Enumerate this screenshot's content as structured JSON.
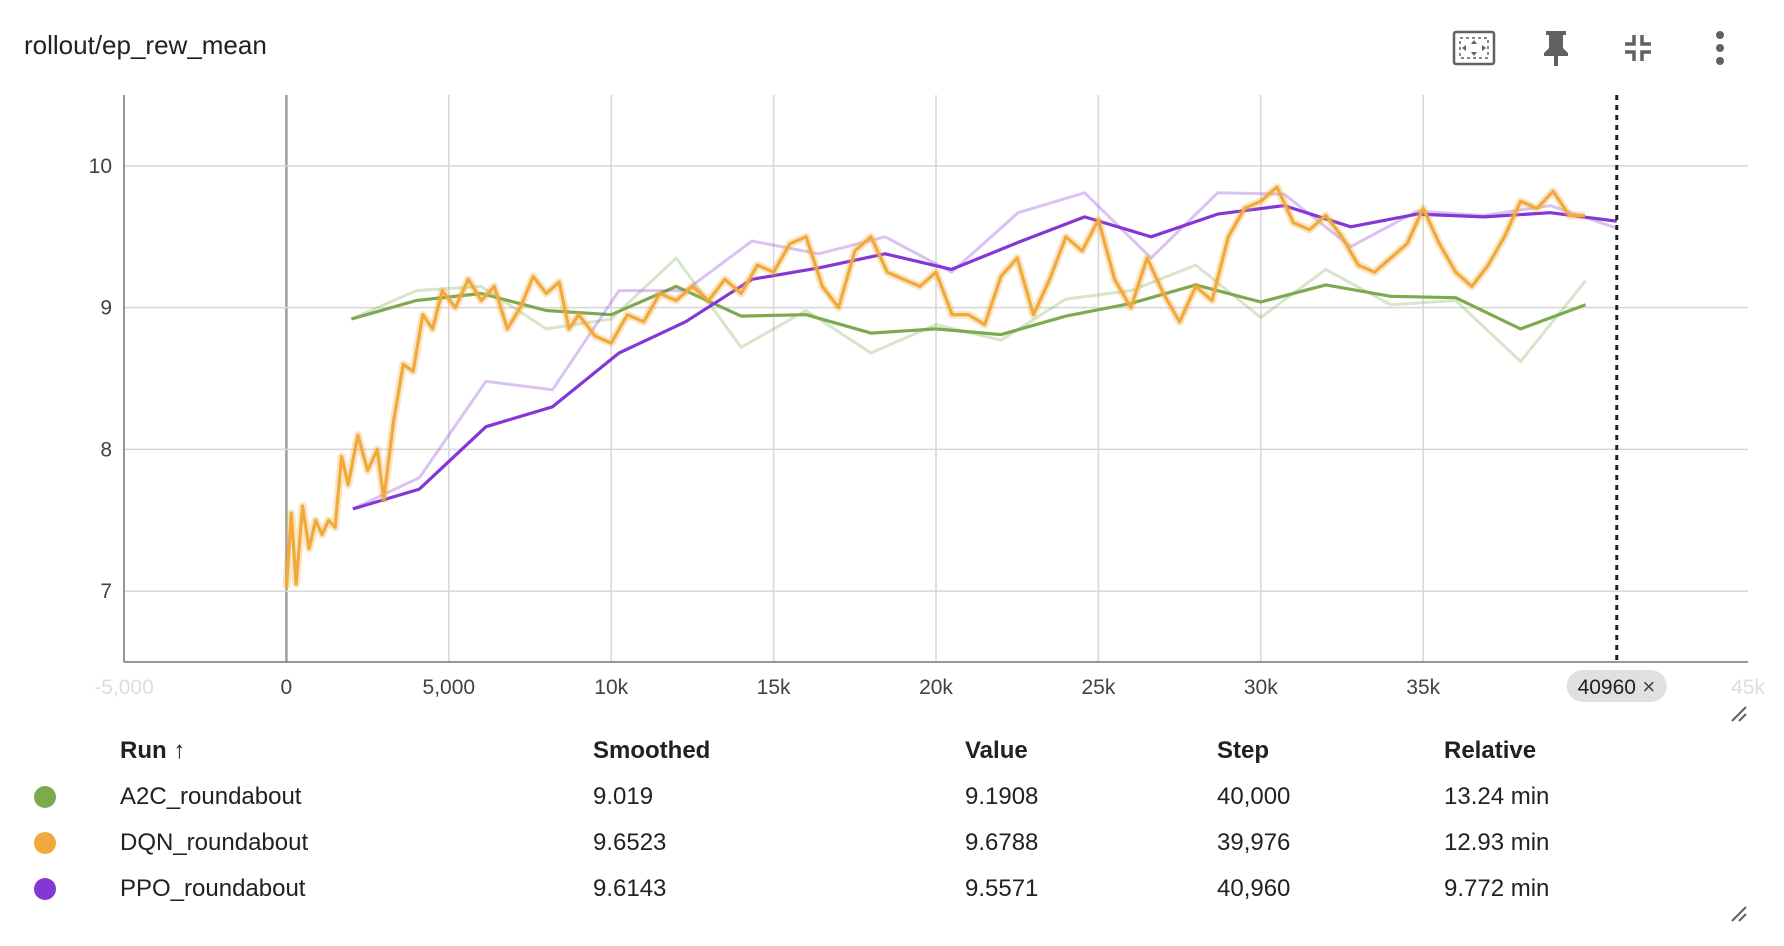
{
  "card": {
    "title": "rollout/ep_rew_mean",
    "tools": [
      {
        "name": "fit-domain-icon"
      },
      {
        "name": "pin-icon"
      },
      {
        "name": "collapse-icon"
      },
      {
        "name": "more-vert-icon"
      }
    ]
  },
  "table": {
    "headers": {
      "run": "Run ↑",
      "smoothed": "Smoothed",
      "value": "Value",
      "step": "Step",
      "relative": "Relative"
    },
    "rows": [
      {
        "color": "#7cab4f",
        "run": "A2C_roundabout",
        "smoothed": "9.019",
        "value": "9.1908",
        "step": "40,000",
        "relative": "13.24 min"
      },
      {
        "color": "#f0a93a",
        "run": "DQN_roundabout",
        "smoothed": "9.6523",
        "value": "9.6788",
        "step": "39,976",
        "relative": "12.93 min"
      },
      {
        "color": "#8436d6",
        "run": "PPO_roundabout",
        "smoothed": "9.6143",
        "value": "9.5571",
        "step": "40,960",
        "relative": "9.772 min"
      }
    ]
  },
  "chart_data": {
    "type": "line",
    "title": "rollout/ep_rew_mean",
    "xlim": [
      -5000,
      45000
    ],
    "ylim": [
      6.5,
      10.5
    ],
    "x_ticks": [
      {
        "v": -5000,
        "label": "-5,000",
        "faded": true
      },
      {
        "v": 0,
        "label": "0"
      },
      {
        "v": 5000,
        "label": "5,000"
      },
      {
        "v": 10000,
        "label": "10k"
      },
      {
        "v": 15000,
        "label": "15k"
      },
      {
        "v": 20000,
        "label": "20k"
      },
      {
        "v": 25000,
        "label": "25k"
      },
      {
        "v": 30000,
        "label": "30k"
      },
      {
        "v": 35000,
        "label": "35k"
      },
      {
        "v": 45000,
        "label": "45k",
        "faded": true
      }
    ],
    "y_ticks": [
      7,
      8,
      9,
      10
    ],
    "grid": true,
    "cursor_step": 40960,
    "cursor_label": "40960",
    "series": [
      {
        "name": "A2C_roundabout",
        "color": "#7cab4f",
        "raw": [
          [
            2000,
            8.92
          ],
          [
            4000,
            9.12
          ],
          [
            6000,
            9.15
          ],
          [
            8000,
            8.85
          ],
          [
            10000,
            8.92
          ],
          [
            12000,
            9.35
          ],
          [
            14000,
            8.72
          ],
          [
            16000,
            8.98
          ],
          [
            18000,
            8.68
          ],
          [
            20000,
            8.88
          ],
          [
            22000,
            8.77
          ],
          [
            24000,
            9.06
          ],
          [
            26000,
            9.12
          ],
          [
            28000,
            9.3
          ],
          [
            30000,
            8.93
          ],
          [
            32000,
            9.27
          ],
          [
            34000,
            9.02
          ],
          [
            36000,
            9.05
          ],
          [
            38000,
            8.62
          ],
          [
            40000,
            9.19
          ]
        ],
        "smoothed": [
          [
            2000,
            8.92
          ],
          [
            4000,
            9.05
          ],
          [
            6000,
            9.1
          ],
          [
            8000,
            8.98
          ],
          [
            10000,
            8.95
          ],
          [
            12000,
            9.15
          ],
          [
            14000,
            8.94
          ],
          [
            16000,
            8.95
          ],
          [
            18000,
            8.82
          ],
          [
            20000,
            8.85
          ],
          [
            22000,
            8.81
          ],
          [
            24000,
            8.94
          ],
          [
            26000,
            9.03
          ],
          [
            28000,
            9.16
          ],
          [
            30000,
            9.04
          ],
          [
            32000,
            9.16
          ],
          [
            34000,
            9.08
          ],
          [
            36000,
            9.07
          ],
          [
            38000,
            8.85
          ],
          [
            40000,
            9.02
          ]
        ]
      },
      {
        "name": "PPO_roundabout",
        "color": "#8436d6",
        "raw": [
          [
            2048,
            7.58
          ],
          [
            4096,
            7.8
          ],
          [
            6144,
            8.48
          ],
          [
            8192,
            8.42
          ],
          [
            10240,
            9.12
          ],
          [
            12288,
            9.12
          ],
          [
            14336,
            9.47
          ],
          [
            16384,
            9.38
          ],
          [
            18432,
            9.5
          ],
          [
            20480,
            9.25
          ],
          [
            22528,
            9.67
          ],
          [
            24576,
            9.81
          ],
          [
            26624,
            9.35
          ],
          [
            28672,
            9.81
          ],
          [
            30720,
            9.8
          ],
          [
            32768,
            9.43
          ],
          [
            34816,
            9.68
          ],
          [
            36864,
            9.65
          ],
          [
            38912,
            9.72
          ],
          [
            40960,
            9.56
          ]
        ],
        "smoothed": [
          [
            2048,
            7.58
          ],
          [
            4096,
            7.72
          ],
          [
            6144,
            8.16
          ],
          [
            8192,
            8.3
          ],
          [
            10240,
            8.68
          ],
          [
            12288,
            8.9
          ],
          [
            14336,
            9.2
          ],
          [
            16384,
            9.28
          ],
          [
            18432,
            9.38
          ],
          [
            20480,
            9.27
          ],
          [
            22528,
            9.46
          ],
          [
            24576,
            9.64
          ],
          [
            26624,
            9.5
          ],
          [
            28672,
            9.66
          ],
          [
            30720,
            9.72
          ],
          [
            32768,
            9.57
          ],
          [
            34816,
            9.66
          ],
          [
            36864,
            9.64
          ],
          [
            38912,
            9.67
          ],
          [
            40960,
            9.61
          ]
        ]
      },
      {
        "name": "DQN_roundabout",
        "color": "#f0a93a",
        "smoothed": [
          [
            0,
            7.02
          ],
          [
            150,
            7.55
          ],
          [
            300,
            7.05
          ],
          [
            500,
            7.6
          ],
          [
            700,
            7.3
          ],
          [
            900,
            7.5
          ],
          [
            1100,
            7.4
          ],
          [
            1300,
            7.5
          ],
          [
            1500,
            7.45
          ],
          [
            1700,
            7.95
          ],
          [
            1900,
            7.75
          ],
          [
            2200,
            8.1
          ],
          [
            2500,
            7.85
          ],
          [
            2800,
            8.0
          ],
          [
            3000,
            7.65
          ],
          [
            3300,
            8.2
          ],
          [
            3600,
            8.6
          ],
          [
            3900,
            8.55
          ],
          [
            4200,
            8.95
          ],
          [
            4500,
            8.85
          ],
          [
            4800,
            9.12
          ],
          [
            5200,
            9.0
          ],
          [
            5600,
            9.2
          ],
          [
            6000,
            9.05
          ],
          [
            6400,
            9.15
          ],
          [
            6800,
            8.85
          ],
          [
            7200,
            9.0
          ],
          [
            7600,
            9.22
          ],
          [
            8000,
            9.1
          ],
          [
            8400,
            9.18
          ],
          [
            8700,
            8.85
          ],
          [
            9000,
            8.95
          ],
          [
            9500,
            8.8
          ],
          [
            10000,
            8.75
          ],
          [
            10500,
            8.95
          ],
          [
            11000,
            8.9
          ],
          [
            11500,
            9.1
          ],
          [
            12000,
            9.05
          ],
          [
            12500,
            9.15
          ],
          [
            13000,
            9.05
          ],
          [
            13500,
            9.2
          ],
          [
            14000,
            9.1
          ],
          [
            14500,
            9.3
          ],
          [
            15000,
            9.25
          ],
          [
            15500,
            9.45
          ],
          [
            16000,
            9.5
          ],
          [
            16500,
            9.15
          ],
          [
            17000,
            9.0
          ],
          [
            17500,
            9.4
          ],
          [
            18000,
            9.5
          ],
          [
            18500,
            9.25
          ],
          [
            19000,
            9.2
          ],
          [
            19500,
            9.15
          ],
          [
            20000,
            9.25
          ],
          [
            20500,
            8.95
          ],
          [
            21000,
            8.95
          ],
          [
            21500,
            8.88
          ],
          [
            22000,
            9.22
          ],
          [
            22500,
            9.35
          ],
          [
            23000,
            8.95
          ],
          [
            23500,
            9.2
          ],
          [
            24000,
            9.5
          ],
          [
            24500,
            9.4
          ],
          [
            25000,
            9.62
          ],
          [
            25500,
            9.2
          ],
          [
            26000,
            9.0
          ],
          [
            26500,
            9.35
          ],
          [
            27000,
            9.1
          ],
          [
            27500,
            8.9
          ],
          [
            28000,
            9.15
          ],
          [
            28500,
            9.05
          ],
          [
            29000,
            9.5
          ],
          [
            29500,
            9.7
          ],
          [
            30000,
            9.75
          ],
          [
            30500,
            9.85
          ],
          [
            31000,
            9.6
          ],
          [
            31500,
            9.55
          ],
          [
            32000,
            9.65
          ],
          [
            32500,
            9.5
          ],
          [
            33000,
            9.3
          ],
          [
            33500,
            9.25
          ],
          [
            34000,
            9.35
          ],
          [
            34500,
            9.45
          ],
          [
            35000,
            9.7
          ],
          [
            35500,
            9.45
          ],
          [
            36000,
            9.25
          ],
          [
            36500,
            9.15
          ],
          [
            37000,
            9.3
          ],
          [
            37500,
            9.5
          ],
          [
            38000,
            9.75
          ],
          [
            38500,
            9.7
          ],
          [
            39000,
            9.82
          ],
          [
            39500,
            9.65
          ],
          [
            39976,
            9.65
          ]
        ]
      }
    ]
  }
}
